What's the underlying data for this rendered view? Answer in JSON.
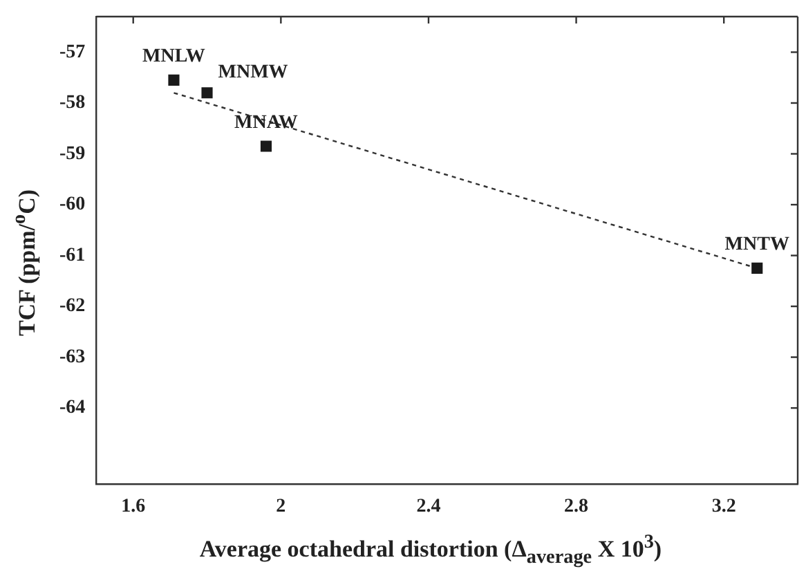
{
  "chart_data": {
    "type": "scatter",
    "xlabel": "Average octahedral distortion (Δ$_{average}$ X 10$^{3}$)",
    "ylabel": "TCF (ppm/$^{o}$C)",
    "xlim": [
      1.5,
      3.4
    ],
    "xticks": [
      1.6,
      2.0,
      2.4,
      2.8,
      3.2
    ],
    "ylim": [
      -65.5,
      -56.3
    ],
    "yticks": [
      -64,
      -63,
      -62,
      -61,
      -60,
      -59,
      -58,
      -57
    ],
    "grid": false,
    "legend": false,
    "marker": "square",
    "series": [
      {
        "color": "#1a1a1a",
        "x": [
          1.71,
          1.8,
          1.96,
          3.29
        ],
        "values": [
          -57.55,
          -57.8,
          -58.85,
          -61.25
        ]
      },
      {
        "type": "line",
        "line_style": "dashed",
        "marker": "none",
        "color": "#333333",
        "x": [
          1.71,
          3.29
        ],
        "values": [
          -57.8,
          -61.25
        ]
      }
    ],
    "annotations": [
      {
        "text": "MNLW",
        "x": 1.71,
        "y": -57.55
      },
      {
        "text": "MNMW",
        "x": 1.8,
        "y": -57.8
      },
      {
        "text": "MNAW",
        "x": 1.96,
        "y": -58.85
      },
      {
        "text": "MNTW",
        "x": 3.29,
        "y": -61.25
      }
    ]
  }
}
